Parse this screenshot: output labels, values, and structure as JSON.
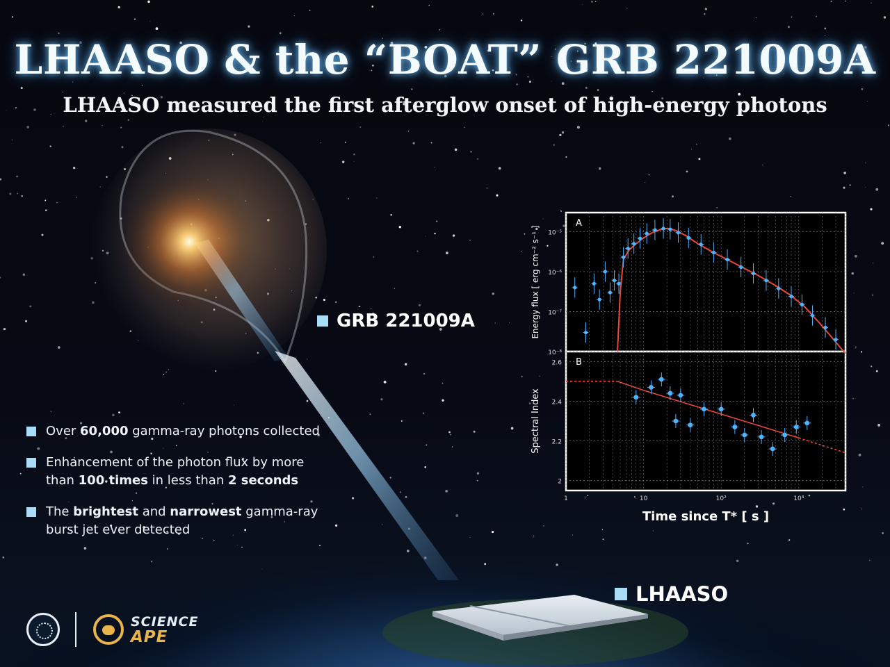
{
  "header": {
    "title": "LHAASO & the “BOAT” GRB 221009A",
    "subtitle": "LHAASO measured the first afterglow onset of high-energy photons"
  },
  "labels": {
    "grb": "GRB 221009A",
    "observatory": "LHAASO"
  },
  "bullets": [
    {
      "pre": "Over ",
      "b1": "60,000",
      "mid": " gamma-ray photons collected",
      "b2": "",
      "mid2": "",
      "b3": "",
      "post": ""
    },
    {
      "pre": "Enhancement of the photon flux by more than ",
      "b1": "100 times",
      "mid": " in less than ",
      "b2": "2 seconds",
      "mid2": "",
      "b3": "",
      "post": ""
    },
    {
      "pre": "The ",
      "b1": "brightest",
      "mid": " and ",
      "b2": "narrowest",
      "mid2": " gamma-ray burst jet ever detected",
      "b3": "",
      "post": ""
    }
  ],
  "logos": {
    "brand_line1": "SCIENCE",
    "brand_line2": "APE"
  },
  "colors": {
    "accent_square": "#a9dcf7",
    "data_points": "#4fb3ff",
    "model_line": "#e8493a",
    "brand_gold": "#e9b44a"
  },
  "chart_data": [
    {
      "panel": "A",
      "type": "line",
      "title": "",
      "xlabel": "Time since T* [ s ]",
      "ylabel": "Energy flux [ erg cm⁻² s⁻¹ ]",
      "x_scale": "log",
      "y_scale": "log",
      "xlim": [
        1,
        4000
      ],
      "ylim": [
        1e-08,
        3e-05
      ],
      "y_ticks": [
        1e-08,
        1e-07,
        1e-06,
        1e-05
      ],
      "y_tick_labels": [
        "10⁻⁸",
        "10⁻⁷",
        "10⁻⁶",
        "10⁻⁵"
      ],
      "grid": true,
      "series": [
        {
          "name": "model",
          "x": [
            4.6,
            5,
            5.5,
            6.5,
            8,
            10,
            13,
            17,
            20,
            25,
            35,
            50,
            80,
            120,
            200,
            300,
            500,
            800,
            1200,
            1800,
            2600,
            3500,
            4000
          ],
          "y": [
            1e-08,
            3e-07,
            2e-06,
            3.5e-06,
            5e-06,
            7e-06,
            9.5e-06,
            1.15e-05,
            1.2e-05,
            1.1e-05,
            8e-06,
            5e-06,
            3e-06,
            2e-06,
            1.2e-06,
            8e-07,
            4.5e-07,
            2.5e-07,
            1.3e-07,
            5.5e-08,
            2.4e-08,
            1.2e-08,
            9e-09
          ]
        },
        {
          "name": "data",
          "x": [
            1.3,
            1.8,
            2.3,
            2.7,
            3.2,
            3.7,
            4.2,
            4.8,
            5.5,
            6.3,
            7.5,
            9,
            11,
            14,
            18,
            22,
            28,
            38,
            55,
            80,
            120,
            180,
            260,
            380,
            550,
            800,
            1100,
            1500,
            2200,
            3000
          ],
          "y": [
            4e-07,
            3e-08,
            5e-07,
            2e-07,
            1e-06,
            3e-07,
            6e-07,
            5e-07,
            2.3e-06,
            3.8e-06,
            5e-06,
            6.8e-06,
            9e-06,
            1.1e-05,
            1.2e-05,
            1.15e-05,
            9.5e-06,
            7e-06,
            4.8e-06,
            3e-06,
            2e-06,
            1.3e-06,
            9e-07,
            6e-07,
            3.8e-07,
            2.4e-07,
            1.5e-07,
            8e-08,
            4e-08,
            2e-08
          ]
        }
      ]
    },
    {
      "panel": "B",
      "type": "scatter",
      "title": "",
      "xlabel": "Time since T* [ s ]",
      "ylabel": "Spectral Index",
      "x_scale": "log",
      "xlim": [
        1,
        4000
      ],
      "ylim": [
        1.95,
        2.65
      ],
      "y_ticks": [
        2.0,
        2.2,
        2.4,
        2.6
      ],
      "y_tick_labels": [
        "2",
        "2.2",
        "2.4",
        "2.6"
      ],
      "x_ticks": [
        1,
        10,
        100,
        1000
      ],
      "x_tick_labels": [
        "1",
        "10",
        "10²",
        "10³"
      ],
      "grid": true,
      "series": [
        {
          "name": "data",
          "x": [
            8,
            12.5,
            17,
            22,
            26,
            30,
            40,
            60,
            100,
            150,
            200,
            260,
            330,
            460,
            660,
            930,
            1280
          ],
          "y": [
            2.42,
            2.47,
            2.51,
            2.44,
            2.3,
            2.43,
            2.28,
            2.36,
            2.36,
            2.27,
            2.23,
            2.33,
            2.22,
            2.16,
            2.23,
            2.27,
            2.29
          ]
        },
        {
          "name": "model",
          "x": [
            1,
            4.6,
            10,
            100,
            1000,
            4000
          ],
          "y": [
            2.5,
            2.5,
            2.455,
            2.335,
            2.215,
            2.14
          ]
        }
      ]
    }
  ]
}
